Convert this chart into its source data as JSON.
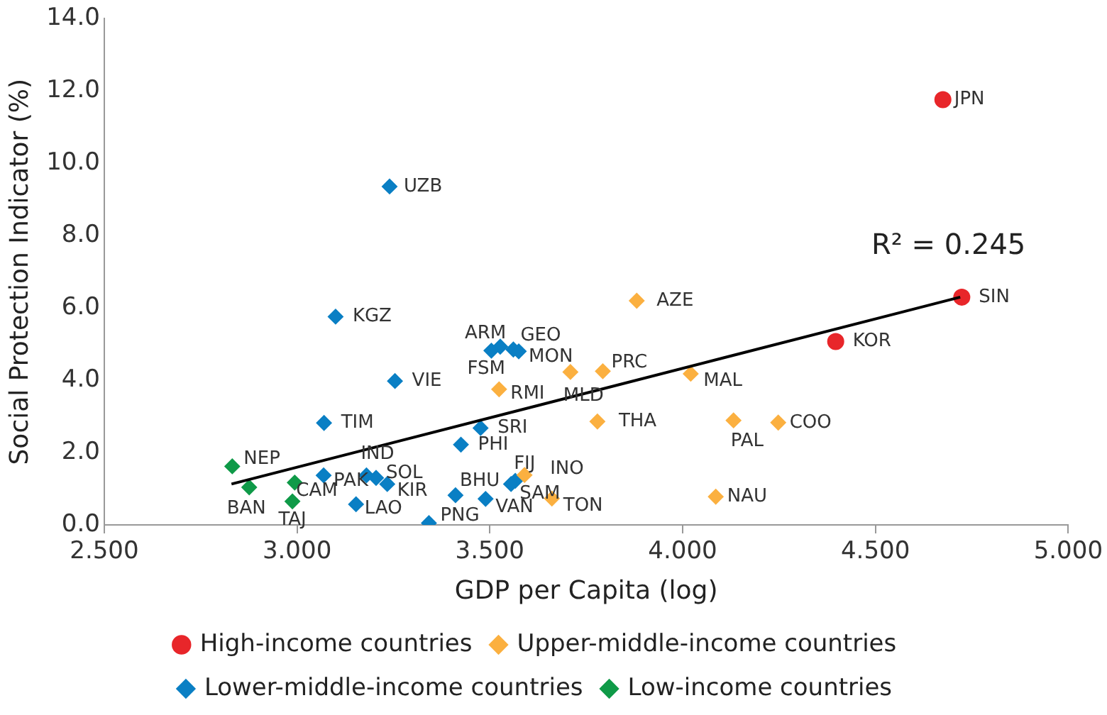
{
  "chart_data": {
    "type": "scatter",
    "xlabel": "GDP per Capita (log)",
    "ylabel": "Social Protection Indicator (%)",
    "xlim": [
      2.5,
      5.0
    ],
    "ylim": [
      0,
      14
    ],
    "xticks": [
      {
        "value": 2.5,
        "label": "2.500"
      },
      {
        "value": 3.0,
        "label": "3.000"
      },
      {
        "value": 3.5,
        "label": "3.500"
      },
      {
        "value": 4.0,
        "label": "4.000"
      },
      {
        "value": 4.5,
        "label": "4.500"
      },
      {
        "value": 5.0,
        "label": "5.000"
      }
    ],
    "yticks": [
      {
        "value": 0,
        "label": "0.0"
      },
      {
        "value": 2,
        "label": "2.0"
      },
      {
        "value": 4,
        "label": "4.0"
      },
      {
        "value": 6,
        "label": "6.0"
      },
      {
        "value": 8,
        "label": "8.0"
      },
      {
        "value": 10,
        "label": "10.0"
      },
      {
        "value": 12,
        "label": "12.0"
      },
      {
        "value": 14,
        "label": "14.0"
      }
    ],
    "grid": false,
    "legend": "bottom",
    "series": [
      {
        "name": "High-income countries",
        "color": "#e8262a",
        "marker": "circle",
        "x": [
          4.675,
          4.724,
          4.397
        ],
        "values": [
          11.76,
          6.3,
          5.07
        ]
      },
      {
        "name": "Upper-middle-income countries",
        "color": "#fbb040",
        "marker": "diamond",
        "x": [
          3.881,
          3.709,
          3.793,
          3.524,
          4.021,
          3.779,
          4.132,
          4.248,
          3.661,
          4.086,
          3.59
        ],
        "values": [
          6.2,
          4.23,
          4.25,
          3.75,
          4.18,
          2.86,
          2.89,
          2.83,
          0.73,
          0.78,
          1.38
        ]
      },
      {
        "name": "Lower-middle-income countries",
        "color": "#0a7fc4",
        "marker": "diamond",
        "x": [
          3.24,
          3.1,
          3.254,
          3.07,
          3.069,
          3.18,
          3.205,
          3.234,
          3.153,
          3.342,
          3.411,
          3.489,
          3.425,
          3.476,
          3.527,
          3.504,
          3.561,
          3.575,
          3.566,
          3.555
        ],
        "values": [
          9.36,
          5.76,
          3.98,
          2.82,
          1.37,
          1.37,
          1.3,
          1.13,
          0.57,
          0.05,
          0.82,
          0.72,
          2.22,
          2.68,
          4.93,
          4.82,
          4.85,
          4.8,
          1.22,
          1.13
        ]
      },
      {
        "name": "Low-income countries",
        "color": "#0f9a48",
        "marker": "diamond",
        "x": [
          2.832,
          2.876,
          2.994,
          2.988
        ],
        "values": [
          1.62,
          1.04,
          1.17,
          0.65
        ]
      },
      {
        "type": "line",
        "color": "#000000",
        "marker": "none",
        "x": [
          2.83,
          4.72
        ],
        "values": [
          1.13,
          6.3
        ]
      }
    ],
    "annotations": [
      {
        "text": "JPN",
        "x": 4.675,
        "y": 11.76
      },
      {
        "text": "SIN",
        "x": 4.724,
        "y": 6.3
      },
      {
        "text": "KOR",
        "x": 4.397,
        "y": 5.07
      },
      {
        "text": "AZE",
        "x": 3.881,
        "y": 6.2
      },
      {
        "text": "MLD",
        "x": 3.709,
        "y": 4.23
      },
      {
        "text": "PRC",
        "x": 3.793,
        "y": 4.25
      },
      {
        "text": "RMI",
        "x": 3.524,
        "y": 3.75
      },
      {
        "text": "MAL",
        "x": 4.021,
        "y": 4.18
      },
      {
        "text": "THA",
        "x": 3.779,
        "y": 2.86
      },
      {
        "text": "PAL",
        "x": 4.132,
        "y": 2.89
      },
      {
        "text": "COO",
        "x": 4.248,
        "y": 2.83
      },
      {
        "text": "TON",
        "x": 3.661,
        "y": 0.73
      },
      {
        "text": "NAU",
        "x": 4.086,
        "y": 0.78
      },
      {
        "text": "INO",
        "x": 3.59,
        "y": 1.38
      },
      {
        "text": "UZB",
        "x": 3.24,
        "y": 9.36
      },
      {
        "text": "KGZ",
        "x": 3.1,
        "y": 5.76
      },
      {
        "text": "VIE",
        "x": 3.254,
        "y": 3.98
      },
      {
        "text": "TIM",
        "x": 3.07,
        "y": 2.82
      },
      {
        "text": "PAK",
        "x": 3.069,
        "y": 1.37
      },
      {
        "text": "IND",
        "x": 3.18,
        "y": 1.37
      },
      {
        "text": "SOL",
        "x": 3.205,
        "y": 1.3
      },
      {
        "text": "KIR",
        "x": 3.234,
        "y": 1.13
      },
      {
        "text": "LAO",
        "x": 3.153,
        "y": 0.57
      },
      {
        "text": "PNG",
        "x": 3.342,
        "y": 0.05
      },
      {
        "text": "BHU",
        "x": 3.411,
        "y": 0.82
      },
      {
        "text": "VAN",
        "x": 3.489,
        "y": 0.72
      },
      {
        "text": "PHI",
        "x": 3.425,
        "y": 2.22
      },
      {
        "text": "SRI",
        "x": 3.476,
        "y": 2.68
      },
      {
        "text": "ARM",
        "x": 3.527,
        "y": 4.93
      },
      {
        "text": "FSM",
        "x": 3.504,
        "y": 4.82
      },
      {
        "text": "GEO",
        "x": 3.561,
        "y": 4.85
      },
      {
        "text": "MON",
        "x": 3.575,
        "y": 4.8
      },
      {
        "text": "FIJ",
        "x": 3.566,
        "y": 1.22
      },
      {
        "text": "SAM",
        "x": 3.555,
        "y": 1.13
      },
      {
        "text": "NEP",
        "x": 2.832,
        "y": 1.62
      },
      {
        "text": "BAN",
        "x": 2.876,
        "y": 1.04
      },
      {
        "text": "CAM",
        "x": 2.994,
        "y": 1.17
      },
      {
        "text": "TAJ",
        "x": 2.988,
        "y": 0.65
      },
      "R² = 0.245"
    ]
  }
}
